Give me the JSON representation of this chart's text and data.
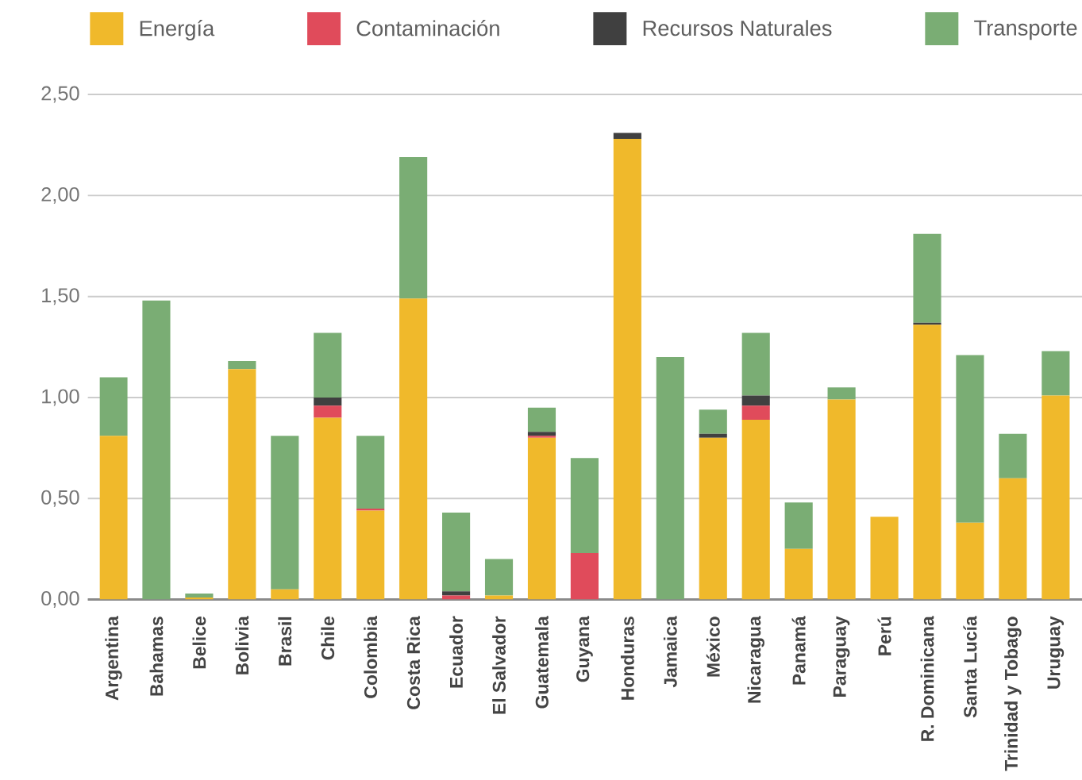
{
  "chart_data": {
    "type": "bar",
    "stacked": true,
    "categories": [
      "Argentina",
      "Bahamas",
      "Belice",
      "Bolivia",
      "Brasil",
      "Chile",
      "Colombia",
      "Costa Rica",
      "Ecuador",
      "El Salvador",
      "Guatemala",
      "Guyana",
      "Honduras",
      "Jamaica",
      "México",
      "Nicaragua",
      "Panamá",
      "Paraguay",
      "Perú",
      "R. Dominicana",
      "Santa Lucía",
      "Trinidad y Tobago",
      "Uruguay"
    ],
    "series": [
      {
        "name": "Energía",
        "color": "#f0b92b",
        "values": [
          0.81,
          0,
          0.01,
          1.14,
          0.05,
          0.9,
          0.44,
          1.49,
          0,
          0.02,
          0.8,
          0,
          2.28,
          0,
          0.8,
          0.89,
          0.25,
          0.99,
          0.41,
          1.36,
          0.38,
          0.6,
          1.01
        ]
      },
      {
        "name": "Contaminación",
        "color": "#e04b5b",
        "values": [
          0,
          0,
          0,
          0,
          0,
          0.06,
          0.01,
          0,
          0.02,
          0,
          0.01,
          0.23,
          0,
          0,
          0,
          0.07,
          0,
          0,
          0,
          0,
          0,
          0,
          0
        ]
      },
      {
        "name": "Recursos Naturales",
        "color": "#404040",
        "values": [
          0,
          0,
          0,
          0,
          0,
          0.04,
          0,
          0,
          0.02,
          0,
          0.02,
          0,
          0.03,
          0,
          0.02,
          0.05,
          0,
          0,
          0,
          0.01,
          0,
          0,
          0
        ]
      },
      {
        "name": "Transporte",
        "color": "#7aad74",
        "values": [
          0.29,
          1.48,
          0.02,
          0.04,
          0.76,
          0.32,
          0.36,
          0.7,
          0.39,
          0.18,
          0.12,
          0.47,
          0,
          1.2,
          0.12,
          0.31,
          0.23,
          0.06,
          0,
          0.44,
          0.83,
          0.22,
          0.22
        ]
      }
    ],
    "ylim": [
      0,
      2.5
    ],
    "yticks": [
      {
        "value": 0,
        "label": "0,00"
      },
      {
        "value": 0.5,
        "label": "0,50"
      },
      {
        "value": 1,
        "label": "1,00"
      },
      {
        "value": 1.5,
        "label": "1,50"
      },
      {
        "value": 2,
        "label": "2,00"
      },
      {
        "value": 2.5,
        "label": "2,50"
      }
    ],
    "grid": "y",
    "legend": "top"
  }
}
